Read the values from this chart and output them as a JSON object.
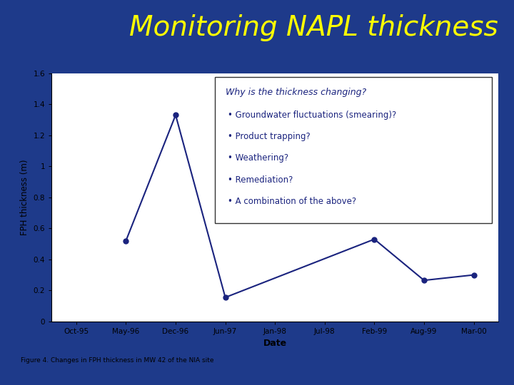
{
  "title": "Monitoring NAPL thickness",
  "title_color": "#FFFF00",
  "title_fontsize": 28,
  "header_bg": "#1e3a8a",
  "plot_bg": "#ffffff",
  "outer_bg": "#1e3a8a",
  "chart_card_bg": "#ffffff",
  "x_labels": [
    "Oct-95",
    "May-96",
    "Dec-96",
    "Jun-97",
    "Jan-98",
    "Jul-98",
    "Feb-99",
    "Aug-99",
    "Mar-00"
  ],
  "x_indices": [
    0,
    1,
    2,
    3,
    4,
    5,
    6,
    7,
    8
  ],
  "data_x": [
    1,
    2,
    3,
    6,
    7,
    8
  ],
  "data_y": [
    0.52,
    1.33,
    0.155,
    0.53,
    0.265,
    0.3
  ],
  "line_color": "#1a237e",
  "marker_color": "#1a237e",
  "ylabel": "FPH thickness (m)",
  "xlabel": "Date",
  "ylim": [
    0,
    1.6
  ],
  "yticks": [
    0,
    0.2,
    0.4,
    0.6,
    0.8,
    1.0,
    1.2,
    1.4,
    1.6
  ],
  "annotation_title": "Why is the thickness changing?",
  "annotation_text_color": "#1a237e",
  "annotation_bullets": [
    "Groundwater fluctuations (smearing)?",
    "Product trapping?",
    "Weathering?",
    "Remediation?",
    "A combination of the above?"
  ],
  "caption": "Figure 4. Changes in FPH thickness in MW 42 of the NIA site",
  "caption_fontsize": 6.5,
  "separator_color": "#00c8d4"
}
